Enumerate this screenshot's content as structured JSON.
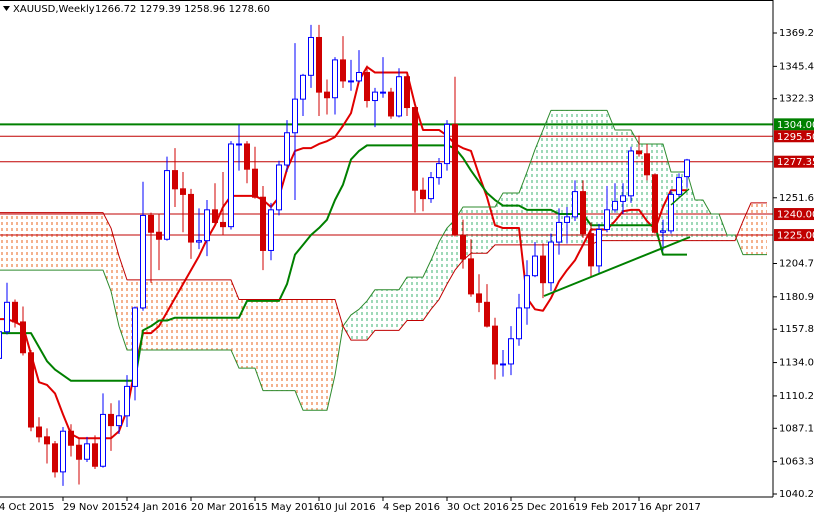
{
  "chart_data": {
    "type": "candlestick",
    "title": "XAUUSD,Weekly",
    "header": "1266.72 1279.39 1258.96 1278.60",
    "categories": [
      "4 Oct 2015",
      null,
      null,
      null,
      null,
      null,
      null,
      null,
      "29 Nov 2015",
      null,
      null,
      null,
      null,
      null,
      null,
      null,
      "24 Jan 2016",
      null,
      null,
      null,
      null,
      null,
      null,
      null,
      "20 Mar 2016",
      null,
      null,
      null,
      null,
      null,
      null,
      null,
      "15 May 2016",
      null,
      null,
      null,
      null,
      null,
      null,
      null,
      "10 Jul 2016",
      null,
      null,
      null,
      null,
      null,
      null,
      null,
      "4 Sep 2016",
      null,
      null,
      null,
      null,
      null,
      null,
      null,
      "30 Oct 2016",
      null,
      null,
      null,
      null,
      null,
      null,
      null,
      "25 Dec 2016",
      null,
      null,
      null,
      null,
      null,
      null,
      null,
      "19 Feb 2017",
      null,
      null,
      null,
      null,
      null,
      null,
      null,
      "16 Apr 2017",
      null,
      null,
      null,
      null,
      null,
      null,
      null,
      null,
      null,
      null,
      null,
      null,
      null,
      null,
      null,
      null
    ],
    "open": [
      1137,
      1156,
      1177,
      1163,
      1141,
      1088,
      1081,
      1076,
      1056,
      1085,
      1075,
      1065,
      1076,
      1060,
      1097,
      1089,
      1096,
      1117,
      1173,
      1239,
      1227,
      1222,
      1271,
      1258,
      1254,
      1220,
      1221,
      1243,
      1234,
      1231,
      1290,
      1290,
      1272,
      1252,
      1214,
      1243,
      1275,
      1298,
      1322,
      1339,
      1366,
      1327,
      1323,
      1350,
      1335,
      1335,
      1341,
      1321,
      1327,
      1327,
      1310,
      1338,
      1316,
      1257,
      1251,
      1266,
      1276,
      1304,
      1225,
      1208,
      1183,
      1177,
      1160,
      1133,
      1133,
      1151,
      1173,
      1196,
      1210,
      1191,
      1220,
      1234,
      1238,
      1256,
      1226,
      1203,
      1229,
      1243,
      1249,
      1253,
      1285,
      1283,
      1268,
      1227,
      1228,
      1254,
      1266.72,
      null,
      null,
      null,
      null,
      null,
      null,
      null,
      null,
      null,
      null
    ],
    "high": [
      1160,
      1191,
      1179,
      1174,
      1143,
      1095,
      1087,
      1078,
      1088,
      1090,
      1080,
      1081,
      1082,
      1112,
      1105,
      1107,
      1125,
      1174,
      1263,
      1241,
      1240,
      1281,
      1287,
      1270,
      1258,
      1244,
      1250,
      1262,
      1270,
      1292,
      1304,
      1292,
      1288,
      1260,
      1248,
      1278,
      1307,
      1362,
      1340,
      1375,
      1375,
      1336,
      1352,
      1367,
      1350,
      1357,
      1346,
      1330,
      1352,
      1330,
      1344,
      1340,
      1320,
      1266,
      1270,
      1280,
      1307,
      1338,
      1236,
      1222,
      1197,
      1190,
      1166,
      1143,
      1160,
      1183,
      1207,
      1220,
      1219,
      1226,
      1244,
      1245,
      1264,
      1264,
      1234,
      1233,
      1260,
      1262,
      1262,
      1288,
      1296,
      1290,
      1269,
      1236,
      1257,
      1269,
      1279.39,
      null,
      null,
      null,
      null,
      null,
      null,
      null,
      null,
      null,
      null
    ],
    "low": [
      1136,
      1154,
      1159,
      1139,
      1085,
      1077,
      1062,
      1052,
      1046,
      1067,
      1047,
      1063,
      1058,
      1059,
      1071,
      1083,
      1088,
      1107,
      1171,
      1191,
      1200,
      1221,
      1245,
      1227,
      1208,
      1215,
      1210,
      1233,
      1225,
      1229,
      1271,
      1262,
      1251,
      1200,
      1207,
      1239,
      1270,
      1250,
      1310,
      1330,
      1310,
      1311,
      1311,
      1330,
      1328,
      1334,
      1316,
      1302,
      1323,
      1308,
      1309,
      1310,
      1241,
      1242,
      1248,
      1261,
      1271,
      1224,
      1201,
      1181,
      1170,
      1159,
      1122,
      1124,
      1125,
      1146,
      1161,
      1195,
      1180,
      1185,
      1211,
      1219,
      1235,
      1223,
      1195,
      1198,
      1227,
      1241,
      1240,
      1248,
      1281,
      1264,
      1226,
      1214,
      1226,
      1252,
      1258.96,
      null,
      null,
      null,
      null,
      null,
      null,
      null,
      null,
      null,
      null
    ],
    "close": [
      1156,
      1177,
      1163,
      1141,
      1088,
      1081,
      1076,
      1056,
      1085,
      1075,
      1065,
      1076,
      1060,
      1097,
      1089,
      1096,
      1117,
      1173,
      1239,
      1227,
      1222,
      1271,
      1258,
      1254,
      1220,
      1221,
      1243,
      1234,
      1231,
      1290,
      1290,
      1272,
      1252,
      1214,
      1243,
      1275,
      1298,
      1322,
      1339,
      1366,
      1327,
      1323,
      1350,
      1335,
      1335,
      1341,
      1321,
      1327,
      1327,
      1310,
      1338,
      1316,
      1257,
      1251,
      1266,
      1276,
      1304,
      1225,
      1208,
      1183,
      1177,
      1160,
      1133,
      1133,
      1151,
      1173,
      1196,
      1210,
      1191,
      1220,
      1234,
      1238,
      1256,
      1226,
      1203,
      1229,
      1243,
      1249,
      1253,
      1285,
      1283,
      1268,
      1227,
      1228,
      1254,
      1266,
      1278.6,
      null,
      null,
      null,
      null,
      null,
      null,
      null,
      null,
      null,
      null
    ],
    "up_color": "#0000ff",
    "down_color": "#d00000",
    "series": [
      {
        "color": "#e00000",
        "width": 2,
        "values": [
          1165,
          1165,
          1163,
          1160,
          1140,
          1120,
          1118,
          1112,
          1097,
          1083,
          1080,
          1080,
          1080,
          1080,
          1080,
          1085,
          1100,
          1130,
          1155,
          1155,
          1160,
          1170,
          1180,
          1190,
          1200,
          1210,
          1222,
          1232,
          1245,
          1253,
          1253,
          1253,
          1253,
          1250,
          1245,
          1252,
          1272,
          1285,
          1287,
          1287,
          1290,
          1292,
          1295,
          1303,
          1312,
          1335,
          1345,
          1341,
          1341,
          1341,
          1341,
          1341,
          1318,
          1300,
          1300,
          1300,
          1296,
          1290,
          1287,
          1285,
          1268,
          1252,
          1232,
          1230,
          1230,
          1230,
          1180,
          1172,
          1171,
          1180,
          1192,
          1200,
          1207,
          1218,
          1229,
          1229,
          1229,
          1235,
          1242,
          1243,
          1243,
          1235,
          1229,
          1245,
          1257,
          1257,
          1257,
          null,
          null,
          null,
          null,
          null,
          null,
          null,
          null,
          null,
          null
        ]
      },
      {
        "color": "#008000",
        "width": 2,
        "values": [
          1155,
          1155,
          1155,
          1155,
          1155,
          1145,
          1135,
          1129,
          1125,
          1121,
          1121,
          1121,
          1121,
          1121,
          1121,
          1121,
          1121,
          1121,
          1157,
          1160,
          1164,
          1164,
          1166,
          1166,
          1166,
          1166,
          1166,
          1166,
          1166,
          1166,
          1166,
          1178,
          1178,
          1178,
          1178,
          1178,
          1190,
          1211,
          1218,
          1225,
          1230,
          1236,
          1250,
          1261,
          1279,
          1285,
          1289,
          1289,
          1289,
          1289,
          1289,
          1289,
          1289,
          1289,
          1289,
          1289,
          1289,
          1287,
          1280,
          1271,
          1263,
          1255,
          1250,
          1246,
          1246,
          1246,
          1243,
          1243,
          1243,
          1243,
          1240,
          1240,
          1240,
          1240,
          1232,
          1232,
          1232,
          1232,
          1232,
          1232,
          1232,
          1232,
          1232,
          1211,
          1211,
          1211,
          1211,
          null,
          null,
          null,
          null,
          null,
          null,
          null,
          null,
          null,
          null
        ]
      },
      {
        "color": "#2e8b2e",
        "width": 1,
        "role": "span_a",
        "values": [
          1200,
          1200,
          1200,
          1200,
          1200,
          1200,
          1200,
          1200,
          1200,
          1200,
          1200,
          1200,
          1200,
          1200,
          1185,
          1160,
          1143,
          1143,
          1143,
          1143,
          1143,
          1143,
          1143,
          1143,
          1143,
          1143,
          1143,
          1143,
          1143,
          1143,
          1130,
          1130,
          1130,
          1114,
          1114,
          1114,
          1114,
          1114,
          1100,
          1100,
          1100,
          1100,
          1125,
          1160,
          1168,
          1172,
          1178,
          1186,
          1186,
          1186,
          1186,
          1195,
          1195,
          1195,
          1207,
          1220,
          1230,
          1236,
          1245,
          1245,
          1245,
          1245,
          1245,
          1255,
          1255,
          1255,
          1270,
          1286,
          1300,
          1314,
          1314,
          1314,
          1314,
          1314,
          1314,
          1314,
          1314,
          1300,
          1300,
          1300,
          1290,
          1290,
          1290,
          1290,
          1270,
          1270,
          1270,
          1250,
          1250,
          1240,
          1240,
          1225,
          1225,
          1211,
          1211,
          1211,
          1211
        ]
      },
      {
        "color": "#c00000",
        "width": 1,
        "role": "span_b",
        "values": [
          1241,
          1241,
          1241,
          1241,
          1241,
          1241,
          1241,
          1241,
          1241,
          1241,
          1241,
          1241,
          1241,
          1241,
          1230,
          1210,
          1193,
          1193,
          1193,
          1193,
          1193,
          1193,
          1193,
          1193,
          1193,
          1193,
          1193,
          1193,
          1193,
          1193,
          1179,
          1179,
          1179,
          1179,
          1179,
          1179,
          1179,
          1179,
          1179,
          1179,
          1179,
          1179,
          1179,
          1160,
          1150,
          1150,
          1150,
          1157,
          1157,
          1157,
          1157,
          1164,
          1164,
          1164,
          1172,
          1179,
          1190,
          1200,
          1207,
          1212,
          1212,
          1212,
          1218,
          1218,
          1218,
          1218,
          1218,
          1218,
          1218,
          1218,
          1218,
          1218,
          1218,
          1218,
          1218,
          1221,
          1221,
          1221,
          1221,
          1221,
          1221,
          1221,
          1221,
          1221,
          1221,
          1221,
          1221,
          1221,
          1221,
          1221,
          1221,
          1221,
          1221,
          1235,
          1248,
          1248,
          1248
        ]
      }
    ],
    "cloud_up_color": "#3cb371",
    "cloud_down_color": "#e8641e",
    "levels": [
      {
        "value": 1304,
        "label": "1304.00",
        "color": "#008000",
        "width": 2
      },
      {
        "value": 1295.5,
        "label": "1295.50",
        "color": "#c00000",
        "width": 1
      },
      {
        "value": 1277.35,
        "label": "1277.35",
        "color": "#c00000",
        "width": 1
      },
      {
        "value": 1240,
        "label": "1240.00",
        "color": "#c00000",
        "width": 1
      },
      {
        "value": 1225,
        "label": "1225.00",
        "color": "#c00000",
        "width": 1
      }
    ],
    "ylim": [
      1038.06,
      1391.32
    ],
    "yticks": [
      {
        "value": 1040.2,
        "label": "1040.20"
      },
      {
        "value": 1063.3,
        "label": "1063.30"
      },
      {
        "value": 1087.1,
        "label": "1087.10"
      },
      {
        "value": 1110.2,
        "label": "1110.20"
      },
      {
        "value": 1134,
        "label": "1134.00"
      },
      {
        "value": 1157.8,
        "label": "1157.80"
      },
      {
        "value": 1180.9,
        "label": "1180.90"
      },
      {
        "value": 1204.7,
        "label": "1204.70"
      },
      {
        "value": 1251.6,
        "label": "1251.60"
      },
      {
        "value": 1322.3,
        "label": "1322.30"
      },
      {
        "value": 1345.4,
        "label": "1345.40"
      },
      {
        "value": 1369.2,
        "label": "1369.20"
      }
    ]
  }
}
